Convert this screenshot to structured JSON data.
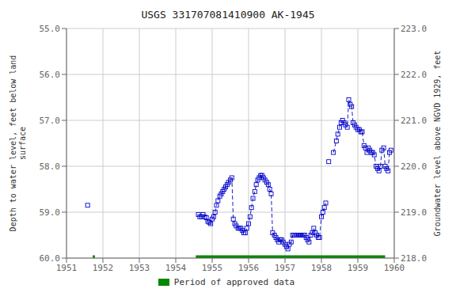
{
  "chart_data": {
    "type": "line",
    "title": "USGS 331707081410900 AK-1945",
    "y_label": "Depth to water level, feet below land\nsurface",
    "y2_label": "Groundwater level above NGVD 1929, feet",
    "xlim": [
      1951,
      1960
    ],
    "xticks": [
      1951,
      1952,
      1953,
      1954,
      1955,
      1956,
      1957,
      1958,
      1959,
      1960
    ],
    "ylim": [
      60,
      55
    ],
    "yticks": [
      {
        "value": 55,
        "label": "55.0"
      },
      {
        "value": 56,
        "label": "56.0"
      },
      {
        "value": 57,
        "label": "57.0"
      },
      {
        "value": 58,
        "label": "58.0"
      },
      {
        "value": 59,
        "label": "59.0"
      },
      {
        "value": 60,
        "label": "60.0"
      }
    ],
    "y2lim": [
      218,
      223
    ],
    "y2ticks": [
      {
        "value": 218,
        "label": "218.0"
      },
      {
        "value": 219,
        "label": "219.0"
      },
      {
        "value": 220,
        "label": "220.0"
      },
      {
        "value": 221,
        "label": "221.0"
      },
      {
        "value": 222,
        "label": "222.0"
      },
      {
        "value": 223,
        "label": "223.0"
      }
    ],
    "grid": true,
    "series": [
      {
        "type": "line",
        "color": "#0000cc",
        "marker": "square",
        "line_style": "none",
        "x": [
          1951.58
        ],
        "values": [
          58.85
        ]
      },
      {
        "type": "line",
        "color": "#0000cc",
        "marker": "square",
        "line_style": "dashed",
        "x": [
          1954.62,
          1954.66,
          1954.71,
          1954.75,
          1954.79,
          1954.84,
          1954.88,
          1954.92,
          1954.96,
          1955.0,
          1955.04,
          1955.08,
          1955.12,
          1955.16,
          1955.21,
          1955.25,
          1955.29,
          1955.33,
          1955.37,
          1955.41,
          1955.45,
          1955.5,
          1955.54,
          1955.58,
          1955.62,
          1955.66,
          1955.71,
          1955.75,
          1955.79,
          1955.83,
          1955.87,
          1955.91,
          1955.95,
          1956.0,
          1956.04,
          1956.08,
          1956.12,
          1956.17,
          1956.21,
          1956.25,
          1956.29,
          1956.33,
          1956.37,
          1956.41,
          1956.45,
          1956.5,
          1956.54,
          1956.58,
          1956.62,
          1956.66,
          1956.71,
          1956.75,
          1956.79,
          1956.83,
          1956.87,
          1956.91,
          1956.95,
          1957.0,
          1957.04,
          1957.08,
          1957.12,
          1957.17,
          1957.21,
          1957.25,
          1957.29,
          1957.33,
          1957.37,
          1957.41,
          1957.45,
          1957.5,
          1957.54,
          1957.58,
          1957.62,
          1957.66,
          1957.71,
          1957.75,
          1957.79,
          1957.83,
          1957.87,
          1957.91,
          1957.95,
          1958.0,
          1958.04,
          1958.08,
          1958.12
        ],
        "values": [
          59.05,
          59.1,
          59.1,
          59.05,
          59.1,
          59.12,
          59.2,
          59.22,
          59.25,
          59.15,
          59.1,
          59.0,
          58.85,
          58.75,
          58.65,
          58.6,
          58.55,
          58.5,
          58.45,
          58.4,
          58.35,
          58.3,
          58.25,
          59.15,
          59.25,
          59.3,
          59.35,
          59.35,
          59.35,
          59.4,
          59.45,
          59.45,
          59.35,
          59.25,
          59.1,
          58.9,
          58.7,
          58.55,
          58.4,
          58.3,
          58.25,
          58.2,
          58.2,
          58.25,
          58.3,
          58.35,
          58.4,
          58.5,
          58.6,
          59.45,
          59.5,
          59.55,
          59.6,
          59.65,
          59.6,
          59.6,
          59.65,
          59.7,
          59.75,
          59.8,
          59.7,
          59.65,
          59.5,
          59.5,
          59.5,
          59.5,
          59.5,
          59.5,
          59.5,
          59.5,
          59.5,
          59.55,
          59.6,
          59.65,
          59.5,
          59.45,
          59.35,
          59.45,
          59.5,
          59.55,
          59.55,
          59.1,
          59.0,
          58.9,
          58.8
        ]
      },
      {
        "type": "line",
        "color": "#0000cc",
        "marker": "square",
        "line_style": "none",
        "x": [
          1958.2
        ],
        "values": [
          57.9
        ]
      },
      {
        "type": "line",
        "color": "#0000cc",
        "marker": "square",
        "line_style": "dashed",
        "x": [
          1958.33,
          1958.41,
          1958.45,
          1958.5,
          1958.54,
          1958.58,
          1958.62,
          1958.66,
          1958.71,
          1958.75,
          1958.79,
          1958.83,
          1958.87,
          1958.91,
          1958.95,
          1959.0,
          1959.04,
          1959.08,
          1959.12,
          1959.17,
          1959.21,
          1959.25,
          1959.29,
          1959.33,
          1959.37,
          1959.41,
          1959.45,
          1959.5,
          1959.54,
          1959.58,
          1959.62,
          1959.66,
          1959.71,
          1959.75,
          1959.79,
          1959.83,
          1959.87,
          1959.91
        ],
        "values": [
          57.7,
          57.45,
          57.3,
          57.15,
          57.05,
          57.0,
          57.05,
          57.1,
          57.15,
          56.55,
          56.65,
          56.7,
          57.05,
          57.1,
          57.15,
          57.2,
          57.2,
          57.25,
          57.25,
          57.55,
          57.6,
          57.7,
          57.6,
          57.65,
          57.7,
          57.7,
          57.75,
          58.0,
          58.05,
          58.1,
          58.0,
          57.65,
          57.6,
          58.0,
          58.05,
          58.1,
          57.7,
          57.65
        ]
      },
      {
        "type": "bar",
        "name": "Period of approved data",
        "color": "#008800",
        "periods": [
          [
            1951.72,
            1951.78
          ],
          [
            1954.55,
            1959.75
          ]
        ],
        "y": 60
      }
    ]
  }
}
